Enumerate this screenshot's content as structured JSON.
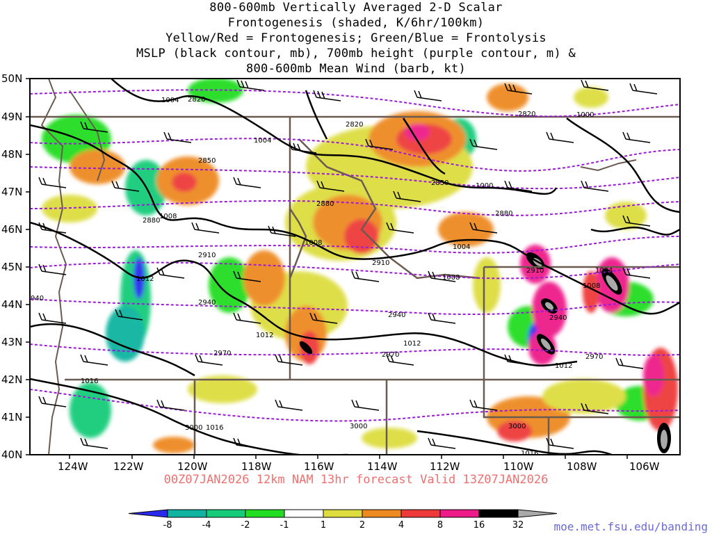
{
  "title_lines": [
    "800-600mb Vertically Averaged 2-D Scalar",
    "Frontogenesis (shaded, K/6hr/100km)",
    "Yellow/Red = Frontogenesis;  Green/Blue = Frontolysis",
    "MSLP (black contour, mb), 700mb height (purple contour, m) &",
    "800-600mb Mean Wind (barb, kt)"
  ],
  "latitude_labels": [
    "50N",
    "49N",
    "48N",
    "47N",
    "46N",
    "45N",
    "44N",
    "43N",
    "42N",
    "41N",
    "40N"
  ],
  "longitude_labels": [
    "124W",
    "122W",
    "120W",
    "118W",
    "116W",
    "114W",
    "112W",
    "110W",
    "108W",
    "106W"
  ],
  "height_contour_labels": [
    "2820",
    "2820",
    "2820",
    "2850",
    "2850",
    "2880",
    "2880",
    "2880",
    "2910",
    "2910",
    "2910",
    "940",
    "2940",
    "2940",
    "2940",
    "2970",
    "2970",
    "2970",
    "3000",
    "3000",
    "3000"
  ],
  "pressure_contour_labels": [
    "1004",
    "1004",
    "1000",
    "1000",
    "1008",
    "1008",
    "1004",
    "1012",
    "1008",
    "1004",
    "1008",
    "1012",
    "1012",
    "1012",
    "1016",
    "1016",
    "1016"
  ],
  "valid_text": "00Z07JAN2026 12km NAM 13hr forecast Valid 13Z07JAN2026",
  "colorbar": {
    "labels": [
      "-8",
      "-4",
      "-2",
      "-1",
      "1",
      "2",
      "4",
      "8",
      "16",
      "32"
    ],
    "colors": [
      "#2a2aee",
      "#10b4a0",
      "#16cc7a",
      "#22dd22",
      "#ffffff",
      "#dddd40",
      "#ee8a22",
      "#ee3a3a",
      "#ee1a8a",
      "#000000",
      "#aaaaaa"
    ]
  },
  "credit": "moe.met.fsu.edu/banding"
}
